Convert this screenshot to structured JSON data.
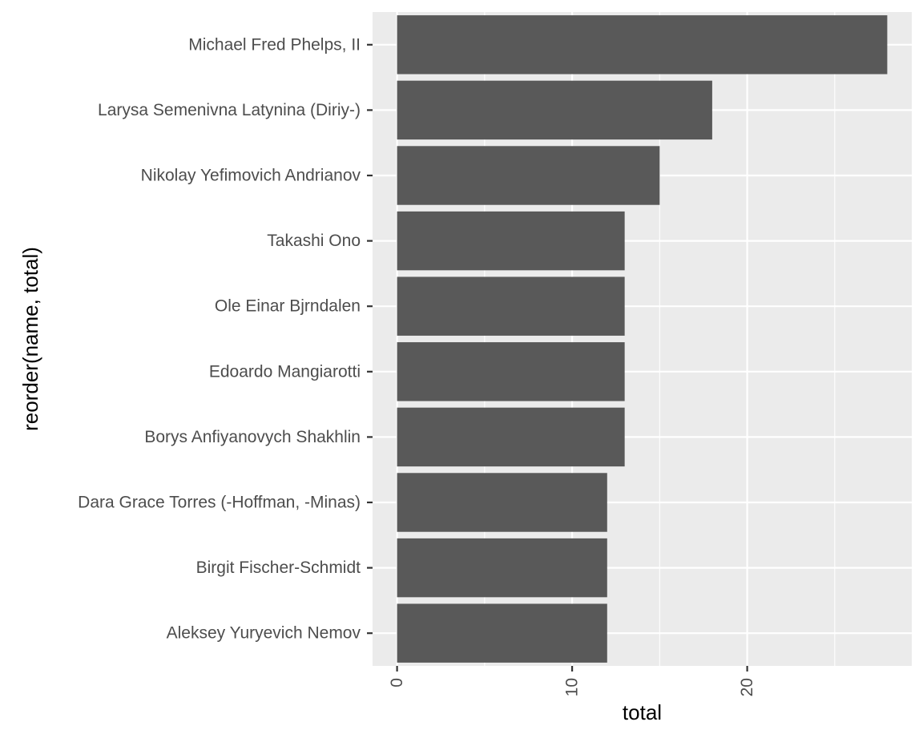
{
  "chart_data": {
    "type": "bar",
    "orientation": "horizontal",
    "categories": [
      "Michael Fred Phelps, II",
      "Larysa Semenivna Latynina (Diriy-)",
      "Nikolay Yefimovich Andrianov",
      "Takashi Ono",
      "Ole Einar Bjrndalen",
      "Edoardo Mangiarotti",
      "Borys Anfiyanovych Shakhlin",
      "Dara Grace Torres (-Hoffman, -Minas)",
      "Birgit Fischer-Schmidt",
      "Aleksey Yuryevich Nemov"
    ],
    "values": [
      28,
      18,
      15,
      13,
      13,
      13,
      13,
      12,
      12,
      12
    ],
    "xlabel": "total",
    "ylabel": "reorder(name, total)",
    "xlim": [
      -1.4,
      29.4
    ],
    "xticks": [
      0,
      10,
      20
    ],
    "xtick_labels": [
      "0",
      "10",
      "20"
    ],
    "grid": true,
    "colors": {
      "bar": "#595959",
      "panel": "#ebebeb",
      "grid_major": "#ffffff",
      "tick_text": "#4d4d4d"
    }
  }
}
